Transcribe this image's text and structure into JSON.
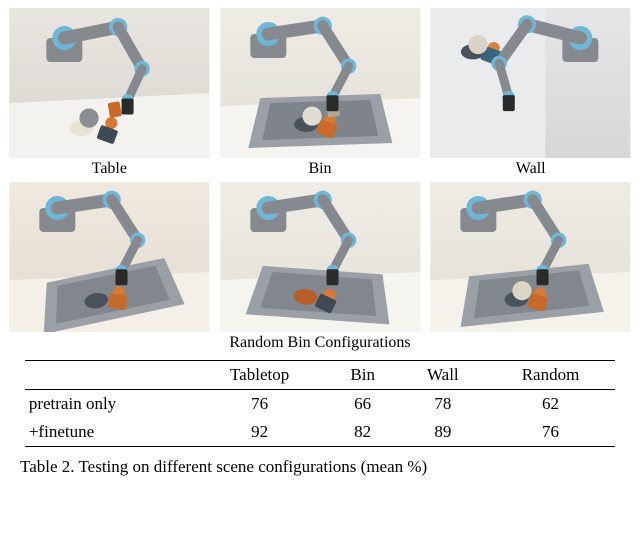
{
  "figure": {
    "top_row": {
      "labels": [
        "Table",
        "Bin",
        "Wall"
      ],
      "images": [
        {
          "bg_top": "#e9e5e0",
          "bg_bottom": "#d8d4ce",
          "table_color": "#f4f2ee",
          "robot_base": "#868a8e",
          "robot_joint": "#6fb7d6",
          "robot_tip": "#2a2a2a",
          "clutter_colors": [
            "#d97934",
            "#3f4a55",
            "#e8e3d7",
            "#8a8d92",
            "#c66a2a"
          ]
        },
        {
          "bg_top": "#efece6",
          "bg_bottom": "#e2ded6",
          "table_color": "#f6f4f0",
          "bin_color": "#9aa0a6",
          "bin_inner": "#7e848a",
          "robot_base": "#868a8e",
          "robot_joint": "#6fb7d6",
          "robot_tip": "#2a2a2a",
          "clutter_colors": [
            "#d97934",
            "#cc6a2a",
            "#4a525c",
            "#e1ddd2",
            "#b0a99b"
          ]
        },
        {
          "bg_top": "#e4e6e7",
          "bg_bottom": "#d5d7d9",
          "wall_color": "#e9ebec",
          "robot_base": "#868a8e",
          "robot_joint": "#6fb7d6",
          "robot_tip": "#2a2a2a",
          "clutter_colors": [
            "#d7813c",
            "#3a647c",
            "#4a525c",
            "#d9d3c6"
          ]
        }
      ]
    },
    "bottom_row": {
      "caption": "Random Bin Configurations",
      "images": [
        {
          "bg_top": "#efe9e0",
          "bg_bottom": "#e1dbd0",
          "table_color": "#f4f0e8",
          "bin_color": "#9aa0a6",
          "bin_inner": "#82878d",
          "robot_base": "#868a8e",
          "robot_joint": "#6fb7d6",
          "robot_tip": "#2a2a2a",
          "clutter_colors": [
            "#d97934",
            "#c66a2a",
            "#4a525c"
          ],
          "tilt": -10
        },
        {
          "bg_top": "#f0ede6",
          "bg_bottom": "#e3e0d7",
          "table_color": "#f6f4ee",
          "bin_color": "#9aa0a6",
          "bin_inner": "#82878d",
          "robot_base": "#868a8e",
          "robot_joint": "#6fb7d6",
          "robot_tip": "#2a2a2a",
          "clutter_colors": [
            "#d97934",
            "#3f4a55",
            "#b85f29"
          ],
          "tilt": 6
        },
        {
          "bg_top": "#efece5",
          "bg_bottom": "#e1ded5",
          "table_color": "#f5f2ec",
          "bin_color": "#9aa0a6",
          "bin_inner": "#82878d",
          "robot_base": "#868a8e",
          "robot_joint": "#6fb7d6",
          "robot_tip": "#2a2a2a",
          "clutter_colors": [
            "#d97934",
            "#c66a2a",
            "#4a525c",
            "#dcd6c8"
          ],
          "tilt": -4
        }
      ]
    }
  },
  "table": {
    "columns": [
      "",
      "Tabletop",
      "Bin",
      "Wall",
      "Random"
    ],
    "rows": [
      {
        "label": "pretrain only",
        "values": [
          76,
          66,
          78,
          62
        ]
      },
      {
        "label": "+finetune",
        "values": [
          92,
          82,
          89,
          76
        ]
      }
    ],
    "caption": "Table 2. Testing on different scene configurations (mean %)"
  }
}
